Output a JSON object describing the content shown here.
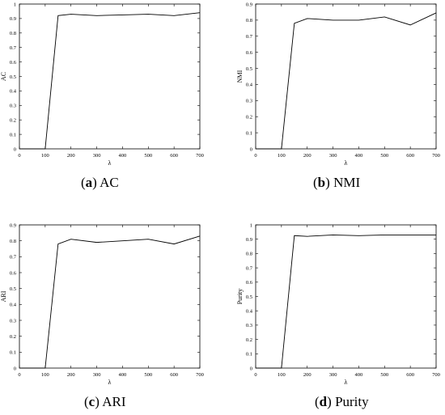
{
  "chart_data": [
    {
      "type": "line",
      "ylabel": "AC",
      "xlabel": "λ",
      "xlim": [
        0,
        700
      ],
      "ylim": [
        0,
        1
      ],
      "xticks": [
        "0",
        "100",
        "200",
        "300",
        "400",
        "500",
        "600",
        "700"
      ],
      "yticks": [
        "0",
        "0.1",
        "0.2",
        "0.3",
        "0.4",
        "0.5",
        "0.6",
        "0.7",
        "0.8",
        "0.9",
        "1"
      ],
      "x": [
        0,
        100,
        150,
        200,
        300,
        400,
        500,
        600,
        700
      ],
      "y": [
        0,
        0,
        0.92,
        0.93,
        0.92,
        0.925,
        0.93,
        0.92,
        0.94
      ],
      "caption_letter": "a",
      "caption_text": "AC"
    },
    {
      "type": "line",
      "ylabel": "NMI",
      "xlabel": "λ",
      "xlim": [
        0,
        700
      ],
      "ylim": [
        0,
        0.9
      ],
      "xticks": [
        "0",
        "100",
        "200",
        "300",
        "400",
        "500",
        "600",
        "700"
      ],
      "yticks": [
        "0",
        "0.1",
        "0.2",
        "0.3",
        "0.4",
        "0.5",
        "0.6",
        "0.7",
        "0.8",
        "0.9"
      ],
      "x": [
        0,
        100,
        150,
        200,
        300,
        400,
        500,
        600,
        700
      ],
      "y": [
        0,
        0,
        0.78,
        0.81,
        0.8,
        0.8,
        0.82,
        0.77,
        0.845
      ],
      "caption_letter": "b",
      "caption_text": "NMI"
    },
    {
      "type": "line",
      "ylabel": "ARI",
      "xlabel": "λ",
      "xlim": [
        0,
        700
      ],
      "ylim": [
        0,
        0.9
      ],
      "xticks": [
        "0",
        "100",
        "200",
        "300",
        "400",
        "500",
        "600",
        "700"
      ],
      "yticks": [
        "0",
        "0.1",
        "0.2",
        "0.3",
        "0.4",
        "0.5",
        "0.6",
        "0.7",
        "0.8",
        "0.9"
      ],
      "x": [
        0,
        100,
        150,
        200,
        300,
        400,
        500,
        600,
        700
      ],
      "y": [
        0,
        0,
        0.78,
        0.81,
        0.79,
        0.8,
        0.81,
        0.78,
        0.83
      ],
      "caption_letter": "c",
      "caption_text": "ARI"
    },
    {
      "type": "line",
      "ylabel": "Purity",
      "xlabel": "λ",
      "xlim": [
        0,
        700
      ],
      "ylim": [
        0,
        1
      ],
      "xticks": [
        "0",
        "100",
        "200",
        "300",
        "400",
        "500",
        "600",
        "700"
      ],
      "yticks": [
        "0",
        "0.1",
        "0.2",
        "0.3",
        "0.4",
        "0.5",
        "0.6",
        "0.7",
        "0.8",
        "0.9",
        "1"
      ],
      "x": [
        0,
        100,
        150,
        200,
        300,
        400,
        500,
        600,
        700
      ],
      "y": [
        0,
        0,
        0.925,
        0.92,
        0.93,
        0.925,
        0.93,
        0.93,
        0.93
      ],
      "caption_letter": "d",
      "caption_text": "Purity"
    }
  ]
}
